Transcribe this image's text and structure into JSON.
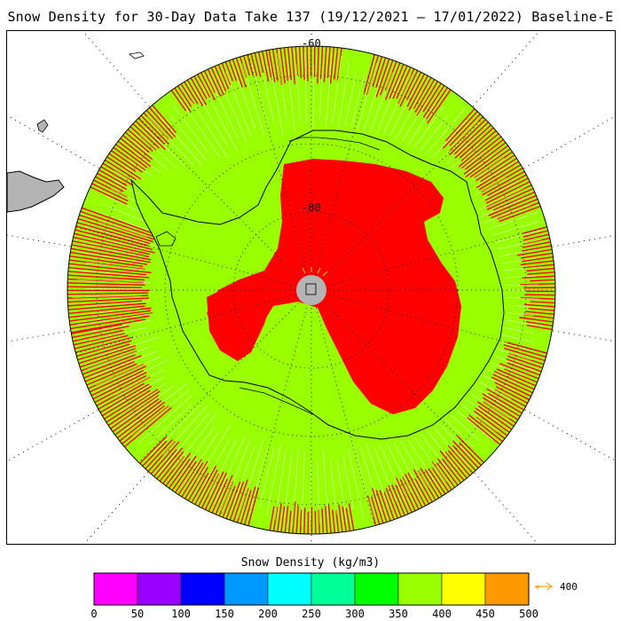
{
  "title": "Snow Density for 30-Day Data Take 137 (19/12/2021 – 17/01/2022) Baseline-E",
  "map": {
    "projection": "south-polar-stereographic",
    "lat_labels": [
      "-60",
      "-80"
    ],
    "colors": {
      "land_low_density": "#99ff00",
      "high_density": "#ff0000",
      "pole_hole": "#b4b4b4",
      "land_outside": "#b4b4b4",
      "coastline": "#000000",
      "graticule": "#000000"
    }
  },
  "legend": {
    "title": "Snow Density (kg/m3)",
    "ticks": [
      "0",
      "50",
      "100",
      "150",
      "200",
      "250",
      "300",
      "350",
      "400",
      "450",
      "500"
    ],
    "colors": [
      "#ff00ff",
      "#9900ff",
      "#0000ff",
      "#0099ff",
      "#00ffff",
      "#00ff99",
      "#00ff00",
      "#99ff00",
      "#ffff00",
      "#ff9900"
    ],
    "over_label": "400",
    "over_color": "#ff9900"
  }
}
